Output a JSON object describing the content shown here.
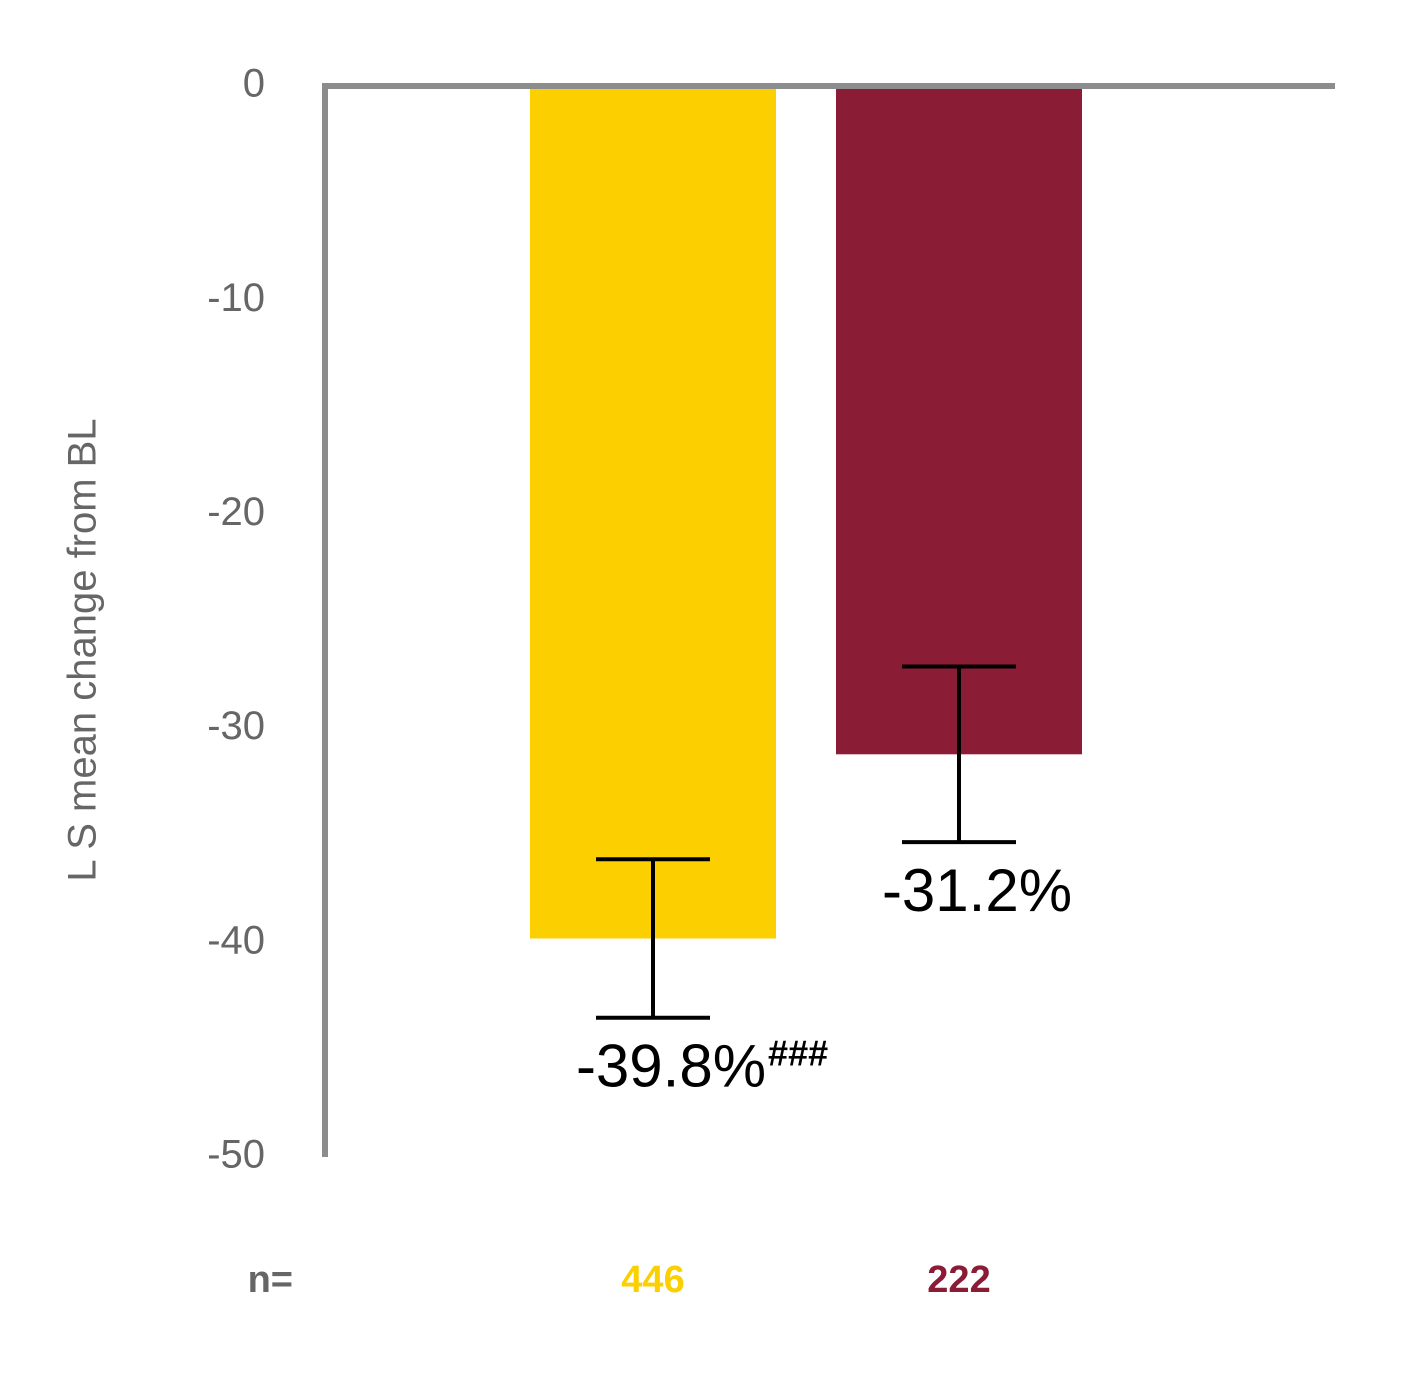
{
  "chart_data": {
    "type": "bar",
    "ylabel": "L S mean change from BL",
    "categories": [
      null,
      null
    ],
    "values": [
      -39.8,
      -31.2
    ],
    "errors": [
      3.7,
      4.1
    ],
    "colors": [
      "#fcd000",
      "#8b1c35"
    ],
    "value_labels": [
      "-39.8%",
      "-31.2%"
    ],
    "value_label_superscripts": [
      "###",
      null
    ],
    "n_label": "n=",
    "n_values": [
      446,
      222
    ],
    "ylim": [
      -50,
      0
    ],
    "yticks": [
      0,
      -10,
      -20,
      -30,
      -40,
      -50
    ],
    "axis_color": "#8c8c8c"
  }
}
